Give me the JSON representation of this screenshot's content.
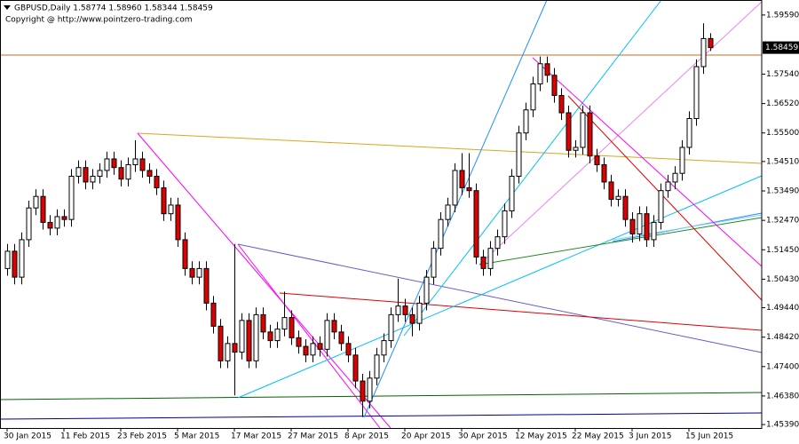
{
  "chart_data": {
    "type": "candlestick",
    "title": "GBPUSD,Daily  1.58774 1.58960 1.58344 1.58459",
    "subtitle": "Copyright @ http://www.pointzero-trading.com",
    "categories": [
      "30 Jan 2015",
      null,
      null,
      null,
      null,
      null,
      null,
      null,
      "11 Feb 2015",
      null,
      null,
      null,
      null,
      null,
      null,
      null,
      "23 Feb 2015",
      null,
      null,
      null,
      null,
      null,
      null,
      null,
      "5 Mar 2015",
      null,
      null,
      null,
      null,
      null,
      null,
      null,
      "17 Mar 2015",
      null,
      null,
      null,
      null,
      null,
      null,
      null,
      "27 Mar 2015",
      null,
      null,
      null,
      null,
      null,
      null,
      null,
      "8 Apr 2015",
      null,
      null,
      null,
      null,
      null,
      null,
      null,
      "20 Apr 2015",
      null,
      null,
      null,
      null,
      null,
      null,
      null,
      "30 Apr 2015",
      null,
      null,
      null,
      null,
      null,
      null,
      null,
      "12 May 2015",
      null,
      null,
      null,
      null,
      null,
      null,
      null,
      "22 May 2015",
      null,
      null,
      null,
      null,
      null,
      null,
      null,
      "3 Jun 2015",
      null,
      null,
      null,
      null,
      null,
      null,
      null,
      "15 Jun 2015",
      null,
      null,
      null
    ],
    "open": [
      1.508,
      1.514,
      1.505,
      1.518,
      1.529,
      1.533,
      1.524,
      1.522,
      1.526,
      1.525,
      1.54,
      1.543,
      1.538,
      1.54,
      1.542,
      1.546,
      1.543,
      1.539,
      1.544,
      1.546,
      1.542,
      1.54,
      1.536,
      1.527,
      1.53,
      1.518,
      1.508,
      1.505,
      1.508,
      1.496,
      1.488,
      1.476,
      1.482,
      1.479,
      1.49,
      1.476,
      1.492,
      1.486,
      1.483,
      1.487,
      1.491,
      1.484,
      1.481,
      1.478,
      1.482,
      1.48,
      1.49,
      1.486,
      1.482,
      1.478,
      1.469,
      1.462,
      1.47,
      1.478,
      1.483,
      1.492,
      1.495,
      1.492,
      1.489,
      1.496,
      1.505,
      1.515,
      1.525,
      1.53,
      1.542,
      1.536,
      1.535,
      1.512,
      1.508,
      1.515,
      1.519,
      1.528,
      1.54,
      1.555,
      1.563,
      1.572,
      1.579,
      1.575,
      1.568,
      1.562,
      1.549,
      1.55,
      1.562,
      1.547,
      1.544,
      1.538,
      1.532,
      1.533,
      1.525,
      1.52,
      1.527,
      1.518,
      1.524,
      1.535,
      1.538,
      1.541,
      1.55,
      1.56,
      1.578,
      1.58774
    ],
    "high": [
      1.5165,
      1.5165,
      1.5205,
      1.5315,
      1.5355,
      1.5355,
      1.5265,
      1.5285,
      1.5285,
      1.5425,
      1.5455,
      1.5455,
      1.5425,
      1.5445,
      1.5485,
      1.5485,
      1.5455,
      1.5465,
      1.5525,
      1.5485,
      1.5445,
      1.5425,
      1.5385,
      1.5325,
      1.5325,
      1.5205,
      1.5105,
      1.5105,
      1.5105,
      1.4985,
      1.4905,
      1.4845,
      1.5165,
      1.4925,
      1.4925,
      1.4945,
      1.4945,
      1.4885,
      1.4895,
      1.5,
      1.4935,
      1.4865,
      1.4835,
      1.4845,
      1.4845,
      1.4925,
      1.4925,
      1.4885,
      1.4845,
      1.4805,
      1.4715,
      1.4725,
      1.4805,
      1.4855,
      1.4945,
      1.5045,
      1.4975,
      1.4945,
      1.4985,
      1.5075,
      1.5175,
      1.5275,
      1.5325,
      1.5445,
      1.548,
      1.548,
      1.5375,
      1.5145,
      1.5175,
      1.5215,
      1.5305,
      1.5425,
      1.5575,
      1.5655,
      1.5745,
      1.5815,
      1.5815,
      1.5775,
      1.5705,
      1.5645,
      1.5525,
      1.5645,
      1.5645,
      1.5495,
      1.5465,
      1.5405,
      1.5355,
      1.5355,
      1.5275,
      1.5295,
      1.5295,
      1.5265,
      1.5375,
      1.5405,
      1.5435,
      1.5525,
      1.5625,
      1.5805,
      1.593,
      1.5896
    ],
    "low": [
      1.5055,
      1.5025,
      1.5025,
      1.5155,
      1.5265,
      1.5215,
      1.5195,
      1.5195,
      1.5225,
      1.5225,
      1.5375,
      1.5355,
      1.5355,
      1.5375,
      1.5395,
      1.5405,
      1.5365,
      1.5365,
      1.5415,
      1.5395,
      1.5375,
      1.5335,
      1.5245,
      1.5245,
      1.5155,
      1.5055,
      1.5025,
      1.5025,
      1.4935,
      1.4855,
      1.4735,
      1.4735,
      1.464,
      1.4765,
      1.4735,
      1.4735,
      1.4835,
      1.4805,
      1.4805,
      1.4845,
      1.4815,
      1.4785,
      1.4755,
      1.4755,
      1.4775,
      1.4775,
      1.4835,
      1.4795,
      1.4755,
      1.4665,
      1.4565,
      1.4595,
      1.4675,
      1.4755,
      1.4805,
      1.4895,
      1.4895,
      1.4845,
      1.4865,
      1.4935,
      1.5025,
      1.5125,
      1.5225,
      1.5275,
      1.5335,
      1.5325,
      1.5095,
      1.5055,
      1.5055,
      1.5125,
      1.5165,
      1.5255,
      1.5375,
      1.5525,
      1.5605,
      1.5695,
      1.5725,
      1.5655,
      1.5595,
      1.5465,
      1.5465,
      1.5475,
      1.5445,
      1.5415,
      1.5355,
      1.5295,
      1.5295,
      1.5225,
      1.517,
      1.5175,
      1.5155,
      1.5155,
      1.5215,
      1.5325,
      1.5355,
      1.5385,
      1.5475,
      1.5575,
      1.5755,
      1.58344
    ],
    "close": [
      1.514,
      1.505,
      1.518,
      1.529,
      1.533,
      1.524,
      1.522,
      1.526,
      1.525,
      1.54,
      1.543,
      1.538,
      1.54,
      1.542,
      1.546,
      1.543,
      1.539,
      1.544,
      1.546,
      1.542,
      1.54,
      1.536,
      1.527,
      1.53,
      1.518,
      1.508,
      1.505,
      1.508,
      1.496,
      1.488,
      1.476,
      1.482,
      1.479,
      1.49,
      1.476,
      1.492,
      1.486,
      1.483,
      1.487,
      1.491,
      1.484,
      1.481,
      1.478,
      1.482,
      1.48,
      1.49,
      1.486,
      1.482,
      1.478,
      1.469,
      1.462,
      1.47,
      1.478,
      1.483,
      1.492,
      1.495,
      1.492,
      1.489,
      1.496,
      1.505,
      1.515,
      1.525,
      1.53,
      1.542,
      1.536,
      1.535,
      1.512,
      1.508,
      1.515,
      1.519,
      1.528,
      1.54,
      1.555,
      1.563,
      1.572,
      1.579,
      1.575,
      1.568,
      1.562,
      1.549,
      1.55,
      1.562,
      1.547,
      1.544,
      1.538,
      1.532,
      1.533,
      1.525,
      1.52,
      1.527,
      1.518,
      1.524,
      1.535,
      1.538,
      1.541,
      1.55,
      1.56,
      1.578,
      1.58774,
      1.58459
    ],
    "up_color": "#ffffff",
    "down_color": "#e00000",
    "wick_color": "#000000",
    "ylim": [
      1.4527,
      1.6011
    ],
    "yticks": [
      {
        "value": 1.5959,
        "label": "1.59590"
      },
      {
        "value": 1.5754,
        "label": "1.57540"
      },
      {
        "value": 1.5652,
        "label": "1.56520"
      },
      {
        "value": 1.555,
        "label": "1.55500"
      },
      {
        "value": 1.5451,
        "label": "1.54510"
      },
      {
        "value": 1.5349,
        "label": "1.53490"
      },
      {
        "value": 1.5247,
        "label": "1.52470"
      },
      {
        "value": 1.5145,
        "label": "1.51450"
      },
      {
        "value": 1.5043,
        "label": "1.50430"
      },
      {
        "value": 1.4944,
        "label": "1.49440"
      },
      {
        "value": 1.4842,
        "label": "1.48420"
      },
      {
        "value": 1.474,
        "label": "1.47400"
      },
      {
        "value": 1.4638,
        "label": "1.46380"
      },
      {
        "value": 1.4539,
        "label": "1.45390"
      }
    ],
    "current_price": {
      "value": 1.58459,
      "label": "1.58459"
    },
    "grid": false
  }
}
